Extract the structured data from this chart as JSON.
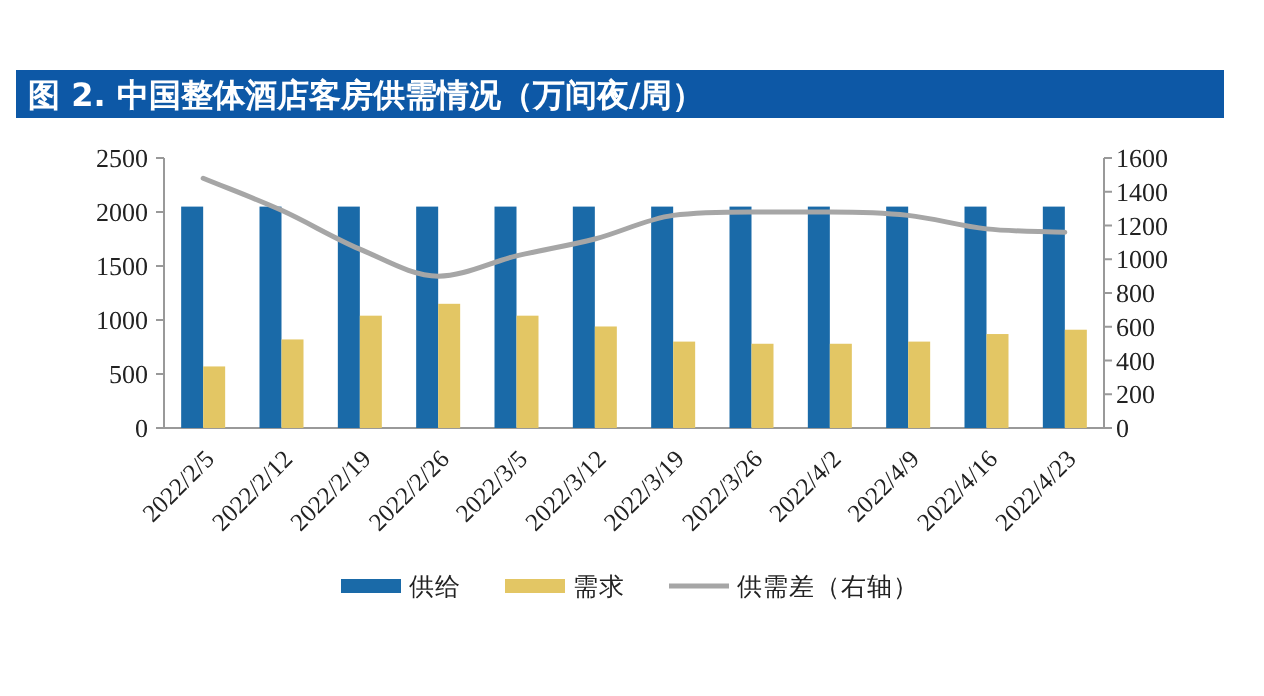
{
  "chart_data": {
    "type": "bar",
    "title": "图 2. 中国整体酒店客房供需情况（万间夜/周）",
    "categories": [
      "2022/2/5",
      "2022/2/12",
      "2022/2/19",
      "2022/2/26",
      "2022/3/5",
      "2022/3/12",
      "2022/3/19",
      "2022/3/26",
      "2022/4/2",
      "2022/4/9",
      "2022/4/16",
      "2022/4/23"
    ],
    "series": [
      {
        "name": "供给",
        "color": "#1a6aa8",
        "values": [
          2050,
          2050,
          2050,
          2050,
          2050,
          2050,
          2050,
          2050,
          2050,
          2050,
          2050,
          2050
        ]
      },
      {
        "name": "需求",
        "color": "#e3c664",
        "values": [
          570,
          820,
          1040,
          1150,
          1040,
          940,
          800,
          780,
          780,
          800,
          870,
          910
        ]
      },
      {
        "name": "供需差（右轴）",
        "color": "#a6a6a6",
        "type": "line",
        "axis": "y2",
        "marker": "none",
        "values": [
          1480,
          1290,
          1060,
          900,
          1020,
          1120,
          1260,
          1280,
          1280,
          1260,
          1180,
          1160
        ]
      }
    ],
    "ylim": [
      0,
      2500
    ],
    "yticks": [
      0,
      500,
      1000,
      1500,
      2000,
      2500
    ],
    "y2lim": [
      0,
      1600
    ],
    "y2ticks": [
      0,
      200,
      400,
      600,
      800,
      1000,
      1200,
      1400,
      1600
    ],
    "legend": "bottom"
  }
}
